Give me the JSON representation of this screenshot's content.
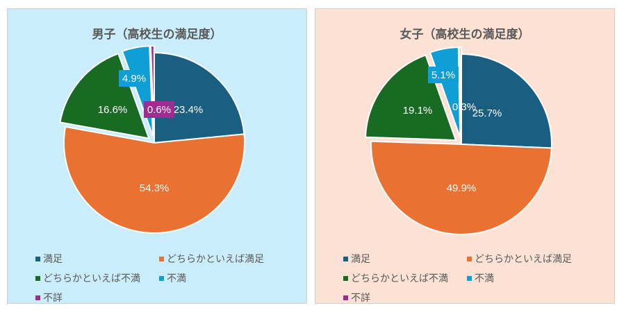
{
  "chart_data": [
    {
      "type": "pie",
      "title": "男子（高校生の満足度）",
      "background": "#caedfb",
      "categories": [
        "満足",
        "どちらかといえば満足",
        "どちらかといえば不満",
        "不満",
        "不詳"
      ],
      "values": [
        23.4,
        54.3,
        16.6,
        4.9,
        0.6
      ],
      "labels": [
        "23.4%",
        "54.3%",
        "16.6%",
        "4.9%",
        "0.6%"
      ],
      "exploded": [
        false,
        false,
        true,
        true,
        true
      ],
      "colors": [
        "#1a5e82",
        "#e97132",
        "#196b24",
        "#0f9ed5",
        "#a02b93"
      ],
      "legend_position": "bottom"
    },
    {
      "type": "pie",
      "title": "女子（高校生の満足度）",
      "background": "#fbe2d5",
      "categories": [
        "満足",
        "どちらかといえば満足",
        "どちらかといえば不満",
        "不満",
        "不詳"
      ],
      "values": [
        25.7,
        49.9,
        19.1,
        5.1,
        0.3
      ],
      "labels": [
        "25.7%",
        "49.9%",
        "19.1%",
        "5.1%",
        "0.3%"
      ],
      "exploded": [
        false,
        false,
        true,
        true,
        true
      ],
      "colors": [
        "#1a5e82",
        "#e97132",
        "#196b24",
        "#0f9ed5",
        "#a02b93"
      ],
      "legend_position": "bottom"
    }
  ]
}
